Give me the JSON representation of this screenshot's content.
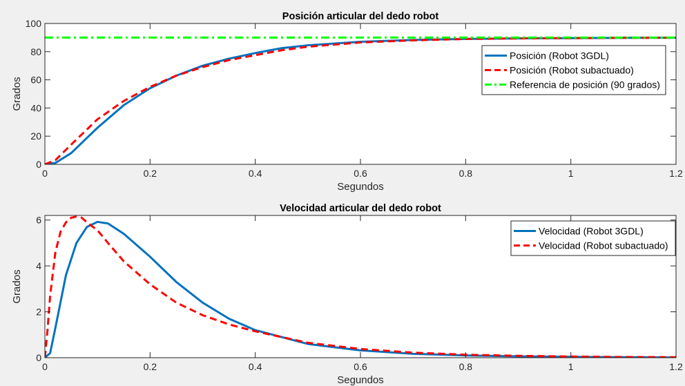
{
  "colors": {
    "figure_bg": "#f0f0f0",
    "axes_bg": "#ffffff",
    "axis": "#262626",
    "blue": "#0072bd",
    "red": "#ff0000",
    "green": "#00ff00"
  },
  "chart_data": [
    {
      "type": "line",
      "title": "Posición articular del dedo robot",
      "xlabel": "Segundos",
      "ylabel": "Grados",
      "xlim": [
        0,
        1.2
      ],
      "ylim": [
        0,
        100
      ],
      "xticks": [
        0,
        0.2,
        0.4,
        0.6,
        0.8,
        1,
        1.2
      ],
      "xtick_labels": [
        "0",
        "0.2",
        "0.4",
        "0.6",
        "0.8",
        "1",
        "1.2"
      ],
      "yticks": [
        0,
        20,
        40,
        60,
        80,
        100
      ],
      "ytick_labels": [
        "0",
        "20",
        "40",
        "60",
        "80",
        "100"
      ],
      "grid": false,
      "legend_position": "top-right",
      "series": [
        {
          "name": "Posición (Robot 3GDL)",
          "color": "#0072bd",
          "dash": "solid",
          "x": [
            0,
            0.02,
            0.05,
            0.1,
            0.15,
            0.2,
            0.25,
            0.3,
            0.35,
            0.4,
            0.45,
            0.5,
            0.6,
            0.7,
            0.8,
            0.9,
            1.0,
            1.1,
            1.2
          ],
          "y": [
            0,
            1,
            8,
            26,
            42,
            54,
            63,
            70,
            75,
            79,
            82.5,
            84.5,
            87,
            88.3,
            89,
            89.4,
            89.6,
            89.8,
            89.9
          ]
        },
        {
          "name": "Posición (Robot subactuado)",
          "color": "#ff0000",
          "dash": "dashed",
          "x": [
            0,
            0.02,
            0.05,
            0.1,
            0.15,
            0.2,
            0.25,
            0.3,
            0.35,
            0.4,
            0.45,
            0.5,
            0.6,
            0.7,
            0.8,
            0.9,
            1.0,
            1.1,
            1.2
          ],
          "y": [
            0,
            3,
            14,
            32,
            45,
            55,
            63,
            69,
            74,
            77.5,
            81,
            83.5,
            86.5,
            88,
            89,
            89.4,
            89.6,
            89.8,
            89.9
          ]
        },
        {
          "name": "Referencia de posición (90 grados)",
          "color": "#00ff00",
          "dash": "dashdot",
          "x": [
            0,
            1.2
          ],
          "y": [
            90,
            90
          ]
        }
      ]
    },
    {
      "type": "line",
      "title": "Velocidad articular del dedo robot",
      "xlabel": "Segundos",
      "ylabel": "Grados",
      "xlim": [
        0,
        1.2
      ],
      "ylim": [
        0,
        6.2
      ],
      "xticks": [
        0,
        0.2,
        0.4,
        0.6,
        0.8,
        1,
        1.2
      ],
      "xtick_labels": [
        "0",
        "0.2",
        "0.4",
        "0.6",
        "0.8",
        "1",
        "1.2"
      ],
      "yticks": [
        0,
        2,
        4,
        6
      ],
      "ytick_labels": [
        "0",
        "2",
        "4",
        "6"
      ],
      "grid": false,
      "legend_position": "top-right",
      "series": [
        {
          "name": "Velocidad (Robot 3GDL)",
          "color": "#0072bd",
          "dash": "solid",
          "x": [
            0,
            0.01,
            0.02,
            0.04,
            0.06,
            0.08,
            0.1,
            0.12,
            0.15,
            0.2,
            0.25,
            0.3,
            0.35,
            0.4,
            0.5,
            0.6,
            0.7,
            0.8,
            0.9,
            1.0,
            1.1,
            1.2
          ],
          "y": [
            0,
            0.2,
            1.3,
            3.6,
            5.0,
            5.7,
            5.92,
            5.85,
            5.4,
            4.4,
            3.3,
            2.4,
            1.7,
            1.2,
            0.6,
            0.32,
            0.17,
            0.1,
            0.06,
            0.04,
            0.02,
            0.01
          ]
        },
        {
          "name": "Velocidad (Robot subactuado)",
          "color": "#ff0000",
          "dash": "dashed",
          "x": [
            0,
            0.005,
            0.01,
            0.02,
            0.03,
            0.04,
            0.05,
            0.06,
            0.07,
            0.08,
            0.1,
            0.12,
            0.15,
            0.2,
            0.25,
            0.3,
            0.35,
            0.4,
            0.5,
            0.6,
            0.7,
            0.8,
            0.9,
            1.0,
            1.1,
            1.2
          ],
          "y": [
            0,
            1.2,
            2.7,
            4.6,
            5.5,
            5.9,
            6.1,
            6.15,
            6.1,
            5.9,
            5.55,
            5.0,
            4.2,
            3.2,
            2.4,
            1.85,
            1.45,
            1.15,
            0.65,
            0.38,
            0.22,
            0.13,
            0.08,
            0.05,
            0.03,
            0.02
          ]
        }
      ]
    }
  ]
}
